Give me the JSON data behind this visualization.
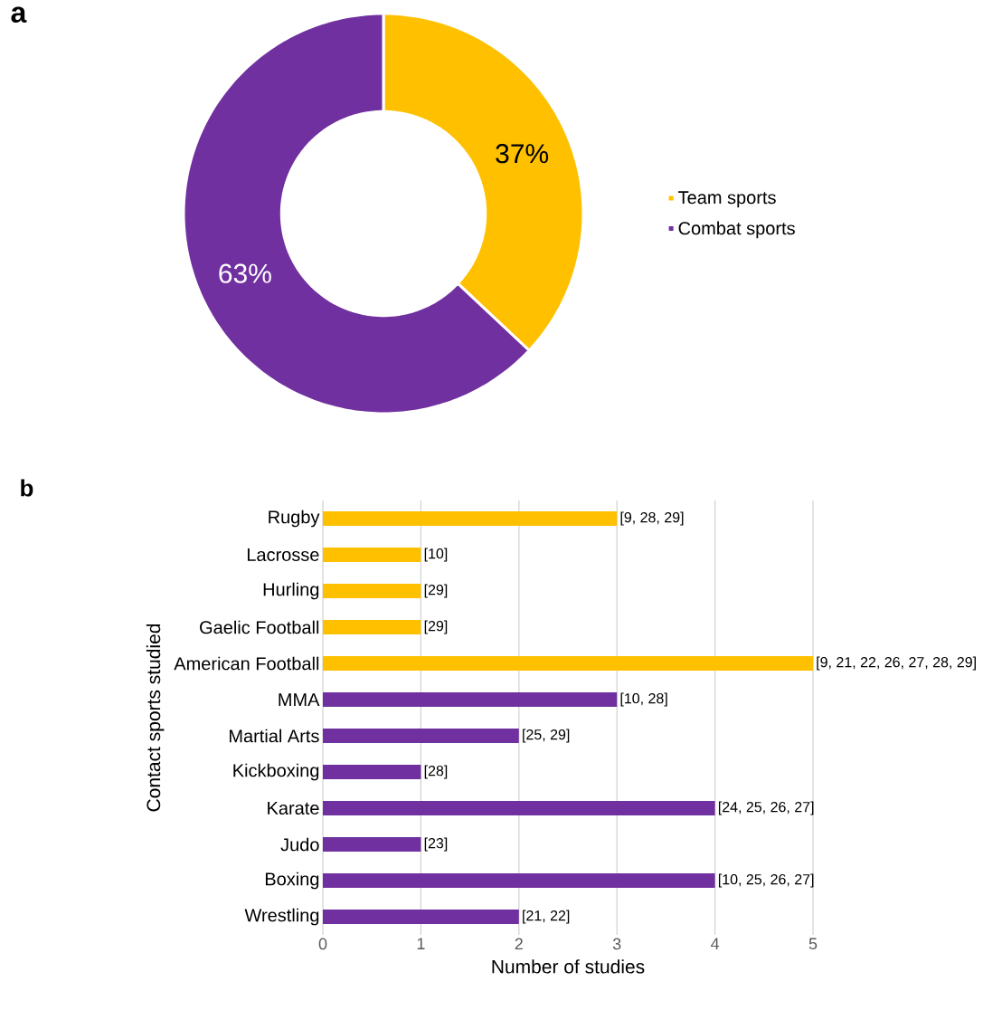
{
  "chart_data": [
    {
      "type": "donut",
      "annotations": [
        "a"
      ],
      "categories": [
        "Team sports",
        "Combat sports"
      ],
      "values": [
        37,
        63
      ],
      "colors": [
        "#ffc000",
        "#7030a0"
      ],
      "value_labels": [
        "37%",
        "63%"
      ],
      "legend": "right"
    },
    {
      "type": "bar",
      "orientation": "horizontal",
      "xlabel": "Number of studies",
      "ylabel": "Contact sports studied",
      "categories": [
        "Rugby",
        "Lacrosse",
        "Hurling",
        "Gaelic Football",
        "American Football",
        "MMA",
        "Martial Arts",
        "Kickboxing",
        "Karate",
        "Judo",
        "Boxing",
        "Wrestling"
      ],
      "values": [
        3,
        1,
        1,
        1,
        5,
        3,
        2,
        1,
        4,
        1,
        4,
        2
      ],
      "colors": [
        "#ffc000",
        "#ffc000",
        "#ffc000",
        "#ffc000",
        "#ffc000",
        "#7030a0",
        "#7030a0",
        "#7030a0",
        "#7030a0",
        "#7030a0",
        "#7030a0",
        "#7030a0"
      ],
      "annotations": [
        "b",
        {
          "text": "[9, 28, 29]",
          "x": 3,
          "y": "Rugby"
        },
        {
          "text": "[10]",
          "x": 1,
          "y": "Lacrosse"
        },
        {
          "text": "[29]",
          "x": 1,
          "y": "Hurling"
        },
        {
          "text": "[29]",
          "x": 1,
          "y": "Gaelic Football"
        },
        {
          "text": "[9, 21, 22, 26, 27, 28, 29]",
          "x": 5,
          "y": "American Football"
        },
        {
          "text": "[10, 28]",
          "x": 3,
          "y": "MMA"
        },
        {
          "text": "[25, 29]",
          "x": 2,
          "y": "Martial Arts"
        },
        {
          "text": "[28]",
          "x": 1,
          "y": "Kickboxing"
        },
        {
          "text": "[24, 25, 26, 27]",
          "x": 4,
          "y": "Karate"
        },
        {
          "text": "[23]",
          "x": 1,
          "y": "Judo"
        },
        {
          "text": "[10, 25, 26, 27]",
          "x": 4,
          "y": "Boxing"
        },
        {
          "text": "[21, 22]",
          "x": 2,
          "y": "Wrestling"
        }
      ],
      "xlim": [
        0,
        5
      ],
      "xticks": [
        0,
        1,
        2,
        3,
        4,
        5
      ],
      "grid": "x"
    }
  ]
}
